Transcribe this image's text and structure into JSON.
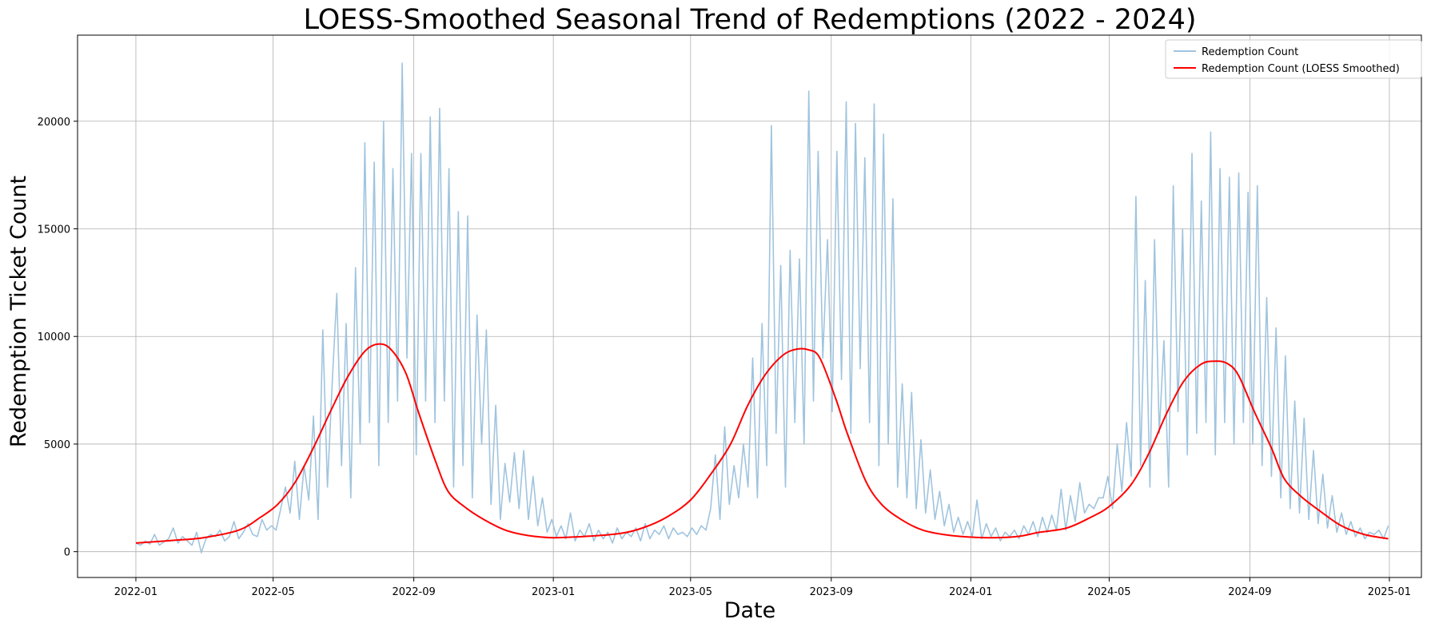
{
  "chart_data": {
    "type": "line",
    "title": "LOESS-Smoothed Seasonal Trend of Redemptions (2022 - 2024)",
    "xlabel": "Date",
    "ylabel": "Redemption Ticket Count",
    "x_ticks": [
      "2022-01",
      "2022-05",
      "2022-09",
      "2023-01",
      "2023-05",
      "2023-09",
      "2024-01",
      "2024-05",
      "2024-09",
      "2025-01"
    ],
    "y_ticks": [
      0,
      5000,
      10000,
      15000,
      20000
    ],
    "xlim": [
      "2021-11-11",
      "2025-01-29"
    ],
    "ylim": [
      -1200,
      24000
    ],
    "grid": true,
    "legend_position": "top-right",
    "series": [
      {
        "name": "Redemption Count",
        "color": "#a0c4de",
        "style": "raw",
        "x_start": "2022-01-01",
        "x_end": "2024-12-31",
        "values": [
          400,
          300,
          500,
          350,
          800,
          300,
          450,
          600,
          1100,
          400,
          700,
          500,
          300,
          900,
          -50,
          600,
          800,
          700,
          1000,
          500,
          700,
          1400,
          600,
          900,
          1300,
          800,
          700,
          1500,
          1000,
          1200,
          1000,
          2000,
          3000,
          1800,
          4200,
          1500,
          4000,
          2400,
          6300,
          1500,
          10300,
          3000,
          7800,
          12000,
          4000,
          10600,
          2500,
          13200,
          5000,
          19000,
          6000,
          18100,
          4000,
          20000,
          6000,
          17800,
          7000,
          22700,
          9000,
          18500,
          4500,
          18500,
          7000,
          20200,
          6000,
          20600,
          7000,
          17800,
          3000,
          15800,
          4000,
          15600,
          2500,
          11000,
          5000,
          10300,
          2200,
          6800,
          1500,
          4100,
          2300,
          4600,
          2000,
          4700,
          1500,
          3500,
          1200,
          2500,
          900,
          1500,
          700,
          1200,
          600,
          1800,
          500,
          1000,
          700,
          1300,
          500,
          1000,
          600,
          900,
          400,
          1100,
          600,
          900,
          700,
          1100,
          500,
          1300,
          600,
          1000,
          800,
          1200,
          600,
          1100,
          800,
          900,
          700,
          1100,
          800,
          1200,
          1000,
          2000,
          4500,
          1500,
          5800,
          2200,
          4000,
          2500,
          5000,
          3000,
          9000,
          2500,
          10600,
          4000,
          19800,
          5500,
          13300,
          3000,
          14000,
          6000,
          13600,
          5000,
          21400,
          7000,
          18600,
          9000,
          14500,
          6500,
          18600,
          8000,
          20900,
          5500,
          19900,
          8500,
          18300,
          6000,
          20800,
          4000,
          19400,
          5000,
          16400,
          3000,
          7800,
          2500,
          7400,
          2000,
          5200,
          1800,
          3800,
          1500,
          2800,
          1200,
          2200,
          900,
          1600,
          800,
          1400,
          700,
          2400,
          600,
          1300,
          700,
          1100,
          500,
          900,
          700,
          1000,
          600,
          1200,
          800,
          1400,
          700,
          1600,
          900,
          1700,
          1000,
          2900,
          1000,
          2600,
          1400,
          3200,
          1800,
          2200,
          2000,
          2500,
          2500,
          3500,
          2000,
          5000,
          2800,
          6000,
          3500,
          16500,
          4000,
          12600,
          3000,
          14500,
          5500,
          9800,
          3000,
          17000,
          6500,
          15000,
          4500,
          18500,
          5500,
          16300,
          6000,
          19500,
          4500,
          17800,
          6000,
          17400,
          5000,
          17600,
          6000,
          16700,
          5000,
          17000,
          4000,
          11800,
          3500,
          10400,
          2500,
          9100,
          2000,
          7000,
          1800,
          6200,
          1500,
          4700,
          1300,
          3600,
          1100,
          2600,
          900,
          1800,
          800,
          1400,
          700,
          1100,
          600,
          900,
          800,
          1000,
          600,
          1200
        ]
      },
      {
        "name": "Redemption Count (LOESS Smoothed)",
        "color": "#ff0000",
        "style": "smooth",
        "points": [
          [
            "2022-01-01",
            400
          ],
          [
            "2022-02-01",
            520
          ],
          [
            "2022-03-01",
            650
          ],
          [
            "2022-04-01",
            1000
          ],
          [
            "2022-04-20",
            1600
          ],
          [
            "2022-05-05",
            2200
          ],
          [
            "2022-05-20",
            3200
          ],
          [
            "2022-06-05",
            4800
          ],
          [
            "2022-06-20",
            6500
          ],
          [
            "2022-07-05",
            8100
          ],
          [
            "2022-07-20",
            9300
          ],
          [
            "2022-08-01",
            9650
          ],
          [
            "2022-08-12",
            9400
          ],
          [
            "2022-08-25",
            8300
          ],
          [
            "2022-09-05",
            6500
          ],
          [
            "2022-09-20",
            4200
          ],
          [
            "2022-10-01",
            2800
          ],
          [
            "2022-10-15",
            2100
          ],
          [
            "2022-11-01",
            1500
          ],
          [
            "2022-11-20",
            1000
          ],
          [
            "2022-12-10",
            750
          ],
          [
            "2023-01-01",
            650
          ],
          [
            "2023-02-01",
            720
          ],
          [
            "2023-03-01",
            850
          ],
          [
            "2023-03-20",
            1100
          ],
          [
            "2023-04-10",
            1600
          ],
          [
            "2023-05-01",
            2400
          ],
          [
            "2023-05-20",
            3700
          ],
          [
            "2023-06-05",
            5000
          ],
          [
            "2023-06-20",
            6800
          ],
          [
            "2023-07-05",
            8200
          ],
          [
            "2023-07-20",
            9100
          ],
          [
            "2023-08-01",
            9400
          ],
          [
            "2023-08-12",
            9380
          ],
          [
            "2023-08-22",
            9000
          ],
          [
            "2023-09-05",
            7100
          ],
          [
            "2023-09-15",
            5500
          ],
          [
            "2023-10-01",
            3300
          ],
          [
            "2023-10-15",
            2200
          ],
          [
            "2023-11-01",
            1500
          ],
          [
            "2023-11-20",
            1000
          ],
          [
            "2023-12-15",
            750
          ],
          [
            "2024-01-15",
            650
          ],
          [
            "2024-02-10",
            700
          ],
          [
            "2024-03-01",
            900
          ],
          [
            "2024-03-25",
            1100
          ],
          [
            "2024-04-15",
            1600
          ],
          [
            "2024-05-01",
            2100
          ],
          [
            "2024-05-20",
            3100
          ],
          [
            "2024-06-05",
            4600
          ],
          [
            "2024-06-20",
            6400
          ],
          [
            "2024-07-05",
            7900
          ],
          [
            "2024-07-20",
            8700
          ],
          [
            "2024-08-01",
            8850
          ],
          [
            "2024-08-12",
            8750
          ],
          [
            "2024-08-22",
            8200
          ],
          [
            "2024-09-05",
            6500
          ],
          [
            "2024-09-20",
            4800
          ],
          [
            "2024-10-01",
            3400
          ],
          [
            "2024-10-15",
            2600
          ],
          [
            "2024-11-01",
            1900
          ],
          [
            "2024-11-20",
            1200
          ],
          [
            "2024-12-10",
            800
          ],
          [
            "2024-12-31",
            600
          ]
        ]
      }
    ]
  }
}
